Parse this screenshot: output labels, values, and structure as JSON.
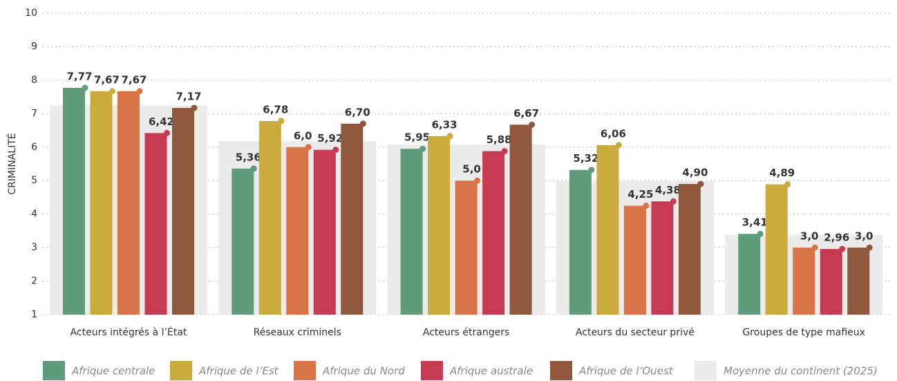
{
  "chart_data": {
    "type": "bar",
    "y_label": "CRIMINALITÉ",
    "categories": [
      "Acteurs intégrés à l’État",
      "Réseaux criminels",
      "Acteurs étrangers",
      "Acteurs du secteur privé",
      "Groupes de type mafieux"
    ],
    "series": [
      {
        "name": "Afrique centrale",
        "color": "#5f9c7b",
        "values": [
          7.77,
          5.36,
          5.95,
          5.32,
          3.41
        ],
        "value_labels": [
          "7,77",
          "5,36",
          "5,95",
          "5,32",
          "3,41"
        ]
      },
      {
        "name": "Afrique de l’Est",
        "color": "#c9ac3d",
        "values": [
          7.67,
          6.78,
          6.33,
          6.06,
          4.89
        ],
        "value_labels": [
          "7,67",
          "6,78",
          "6,33",
          "6,06",
          "4,89"
        ]
      },
      {
        "name": "Afrique du Nord",
        "color": "#d97448",
        "values": [
          7.67,
          6.0,
          5.0,
          4.25,
          3.0
        ],
        "value_labels": [
          "7,67",
          "6,0",
          "5,0",
          "4,25",
          "3,0"
        ]
      },
      {
        "name": "Afrique australe",
        "color": "#c63b51",
        "values": [
          6.42,
          5.92,
          5.88,
          4.38,
          2.96
        ],
        "value_labels": [
          "6,42",
          "5,92",
          "5,88",
          "4,38",
          "2,96"
        ]
      },
      {
        "name": "Afrique de l’Ouest",
        "color": "#8f583c",
        "values": [
          7.17,
          6.7,
          6.67,
          4.9,
          3.0
        ],
        "value_labels": [
          "7,17",
          "6,70",
          "6,67",
          "4,90",
          "3,0"
        ]
      }
    ],
    "average": {
      "name": "Moyenne du continent (2025)",
      "color": "#ebebeb",
      "values": [
        7.25,
        6.18,
        6.08,
        4.98,
        3.38
      ]
    },
    "ylim": [
      1,
      10
    ],
    "yticks": [
      1,
      2,
      3,
      4,
      5,
      6,
      7,
      8,
      9,
      10
    ],
    "grid": true
  }
}
